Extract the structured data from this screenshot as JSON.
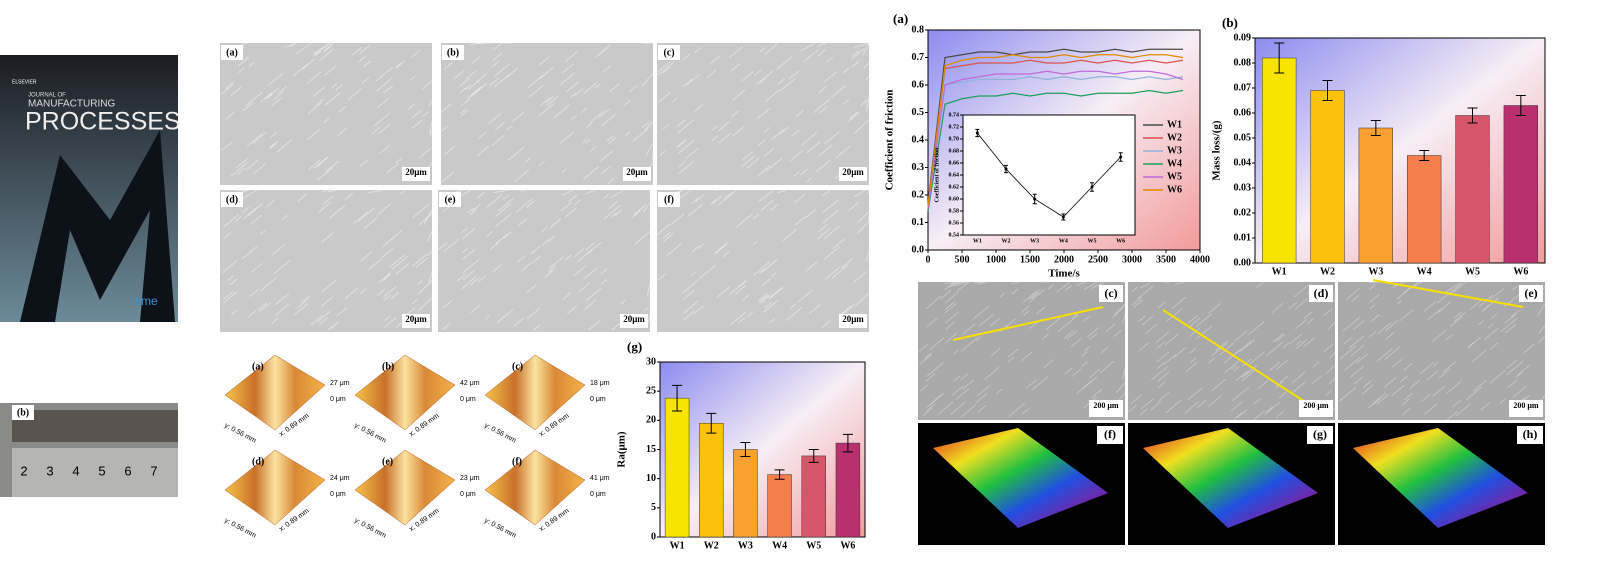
{
  "cover": {
    "journal_line1": "JOURNAL OF",
    "journal_line2": "MANUFACTURING",
    "journal_line3": "PROCESSES",
    "publisher": "ELSEVIER",
    "society": "sme"
  },
  "ruler_photo": {
    "label": "(b)",
    "numbers": [
      "2",
      "3",
      "4",
      "5",
      "6",
      "7"
    ]
  },
  "sem_panels": [
    {
      "label": "(a)",
      "scale": "20μm"
    },
    {
      "label": "(b)",
      "scale": "20μm"
    },
    {
      "label": "(c)",
      "scale": "20μm"
    },
    {
      "label": "(d)",
      "scale": "20μm"
    },
    {
      "label": "(e)",
      "scale": "20μm"
    },
    {
      "label": "(f)",
      "scale": "20μm"
    }
  ],
  "afm_panels": [
    {
      "label": "(a)",
      "z_max": "27 μm",
      "z_min": "0 μm",
      "y_axis": "y: 0.56 mm",
      "x_axis": "x: 0.89 mm"
    },
    {
      "label": "(b)",
      "z_max": "42 μm",
      "z_min": "0 μm",
      "y_axis": "y: 0.56 mm",
      "x_axis": "x: 0.89 mm"
    },
    {
      "label": "(c)",
      "z_max": "18 μm",
      "z_min": "0 μm",
      "y_axis": "y: 0.56 mm",
      "x_axis": "x: 0.89 mm"
    },
    {
      "label": "(d)",
      "z_max": "24 μm",
      "z_min": "0 μm",
      "y_axis": "y: 0.56 mm",
      "x_axis": "x: 0.89 mm"
    },
    {
      "label": "(e)",
      "z_max": "23 μm",
      "z_min": "0 μm",
      "y_axis": "y: 0.56 mm",
      "x_axis": "x: 0.89 mm"
    },
    {
      "label": "(f)",
      "z_max": "41 μm",
      "z_min": "0 μm",
      "y_axis": "y: 0.56 mm",
      "x_axis": "x: 0.89 mm"
    }
  ],
  "wear_panels": [
    {
      "label": "(c)",
      "scale": "200 μm"
    },
    {
      "label": "(d)",
      "scale": "200 μm"
    },
    {
      "label": "(e)",
      "scale": "200 μm"
    }
  ],
  "profile_panels": [
    {
      "label": "(f)"
    },
    {
      "label": "(g)"
    },
    {
      "label": "(h)"
    }
  ],
  "chart_data": [
    {
      "type": "line",
      "panel_label": "(a)",
      "x_label": "Time/s",
      "y_label": "Coefficient of friction",
      "x": [
        0,
        250,
        500,
        750,
        1000,
        1250,
        1500,
        1750,
        2000,
        2250,
        2500,
        2750,
        3000,
        3250,
        3500,
        3750
      ],
      "xlim": [
        0,
        4000
      ],
      "xticks": [
        0,
        500,
        1000,
        1500,
        2000,
        2500,
        3000,
        3500,
        4000
      ],
      "ylim": [
        0,
        0.8
      ],
      "yticks": [
        {
          "value": 0,
          "label": "0.0"
        },
        0.1,
        0.2,
        0.3,
        0.4,
        0.5,
        0.6,
        0.7,
        0.8
      ],
      "legend": "right",
      "series": [
        {
          "name": "W1",
          "color": "#4a4a4a",
          "values": [
            0.17,
            0.7,
            0.71,
            0.72,
            0.72,
            0.71,
            0.72,
            0.72,
            0.73,
            0.72,
            0.72,
            0.73,
            0.72,
            0.73,
            0.73,
            0.73
          ]
        },
        {
          "name": "W2",
          "color": "#d9534f",
          "values": [
            0.16,
            0.66,
            0.67,
            0.68,
            0.68,
            0.68,
            0.69,
            0.68,
            0.68,
            0.69,
            0.68,
            0.69,
            0.68,
            0.69,
            0.68,
            0.69
          ]
        },
        {
          "name": "W3",
          "color": "#8fb3d9",
          "values": [
            0.15,
            0.6,
            0.61,
            0.62,
            0.62,
            0.62,
            0.63,
            0.62,
            0.63,
            0.62,
            0.63,
            0.63,
            0.62,
            0.63,
            0.62,
            0.63
          ]
        },
        {
          "name": "W4",
          "color": "#1f9e5a",
          "values": [
            0.14,
            0.53,
            0.55,
            0.56,
            0.56,
            0.57,
            0.56,
            0.57,
            0.57,
            0.56,
            0.57,
            0.57,
            0.57,
            0.58,
            0.57,
            0.58
          ]
        },
        {
          "name": "W5",
          "color": "#c06ad8",
          "values": [
            0.15,
            0.6,
            0.62,
            0.63,
            0.64,
            0.64,
            0.64,
            0.65,
            0.64,
            0.65,
            0.65,
            0.64,
            0.65,
            0.65,
            0.64,
            0.62
          ]
        },
        {
          "name": "W6",
          "color": "#e08a00",
          "values": [
            0.16,
            0.67,
            0.69,
            0.7,
            0.7,
            0.71,
            0.7,
            0.7,
            0.71,
            0.7,
            0.71,
            0.71,
            0.7,
            0.71,
            0.71,
            0.7
          ]
        }
      ]
    },
    {
      "type": "line",
      "y_label": "Coefficient of friction",
      "categories": [
        "W1",
        "W2",
        "W3",
        "W4",
        "W5",
        "W6"
      ],
      "series": [
        {
          "color": "#000000",
          "values": [
            0.71,
            0.65,
            0.6,
            0.57,
            0.62,
            0.67
          ],
          "errors": [
            0.006,
            0.006,
            0.008,
            0.005,
            0.007,
            0.007
          ]
        }
      ],
      "ylim": [
        0.54,
        0.74
      ],
      "yticks": [
        0.54,
        0.56,
        0.58,
        {
          "value": 0.6,
          "label": "0.60"
        },
        0.62,
        0.64,
        0.66,
        0.68,
        {
          "value": 0.7,
          "label": "0.70"
        },
        0.72,
        0.74
      ]
    },
    {
      "type": "bar",
      "panel_label": "(b)",
      "y_label": "Mass loss/(g)",
      "categories": [
        "W1",
        "W2",
        "W3",
        "W4",
        "W5",
        "W6"
      ],
      "values": [
        0.082,
        0.069,
        0.054,
        0.043,
        0.059,
        0.063
      ],
      "errors": [
        0.006,
        0.004,
        0.003,
        0.002,
        0.003,
        0.004
      ],
      "colors": [
        "#f7e400",
        "#fcc10a",
        "#f9a030",
        "#f47f4b",
        "#d8566a",
        "#b8306e"
      ],
      "ylim": [
        0,
        0.09
      ],
      "yticks": [
        {
          "value": 0,
          "label": "0.00"
        },
        0.01,
        0.02,
        0.03,
        0.04,
        0.05,
        0.06,
        0.07,
        0.08,
        0.09
      ]
    },
    {
      "type": "bar",
      "panel_label": "(g)",
      "y_label": "Ra(μm)",
      "categories": [
        "W1",
        "W2",
        "W3",
        "W4",
        "W5",
        "W6"
      ],
      "values": [
        23.8,
        19.5,
        15.0,
        10.7,
        13.9,
        16.1
      ],
      "errors": [
        2.2,
        1.7,
        1.2,
        0.8,
        1.1,
        1.5
      ],
      "colors": [
        "#f7e400",
        "#fcc10a",
        "#f9a030",
        "#f47f4b",
        "#d8566a",
        "#b8306e"
      ],
      "ylim": [
        0,
        30
      ],
      "yticks": [
        0,
        5,
        10,
        15,
        20,
        25,
        30
      ]
    }
  ]
}
